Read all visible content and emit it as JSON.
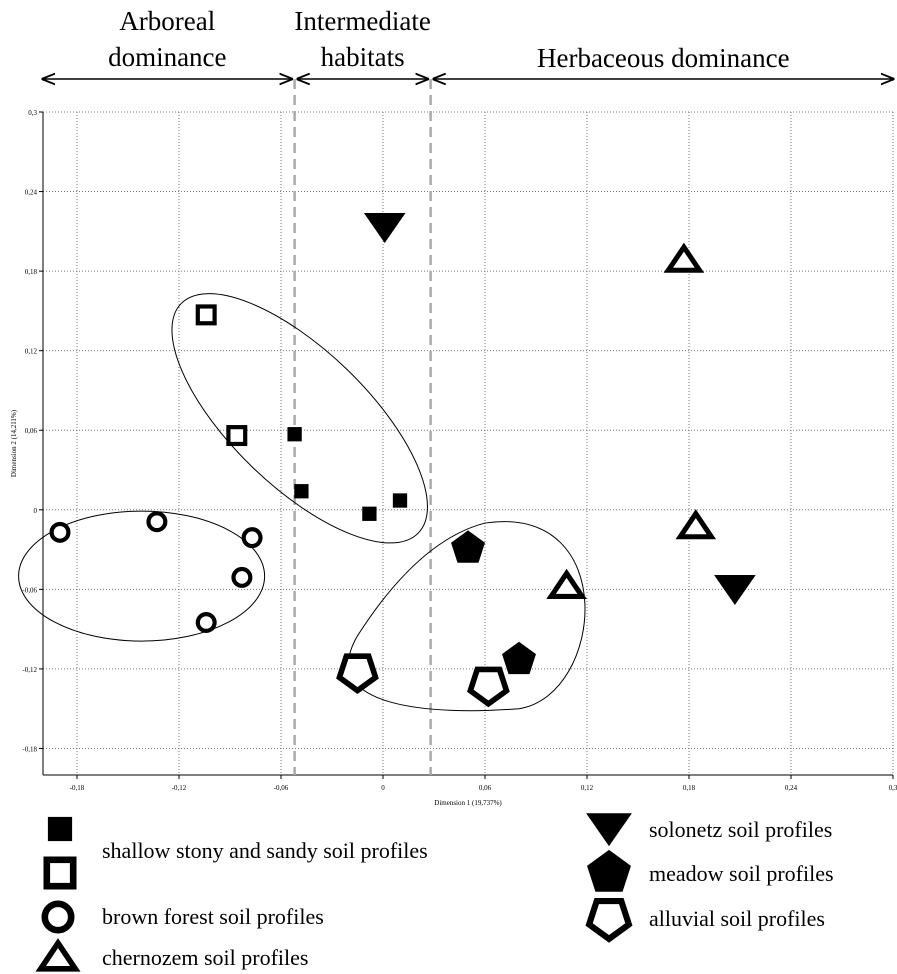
{
  "chart_data": {
    "type": "scatter",
    "xlabel": "Dimension 1 (19,737%)",
    "ylabel": "Dimension 2 (14,211%)",
    "xlim": [
      -0.2,
      0.3
    ],
    "ylim": [
      -0.2,
      0.3
    ],
    "x_ticks": [
      "-0,18",
      "-0,12",
      "-0,06",
      "0",
      "0,06",
      "0,12",
      "0,18",
      "0,24",
      "0,3"
    ],
    "y_ticks": [
      "-0,18",
      "-0,12",
      "-0,06",
      "0",
      "0,06",
      "0,12",
      "0,18",
      "0,24",
      "0,3"
    ],
    "x_tick_values": [
      -0.18,
      -0.12,
      -0.06,
      0,
      0.06,
      0.12,
      0.18,
      0.24,
      0.3
    ],
    "y_tick_values": [
      -0.18,
      -0.12,
      -0.06,
      0,
      0.06,
      0.12,
      0.18,
      0.24,
      0.3
    ],
    "grid": "dotted",
    "regions": [
      {
        "label_lines": [
          "Arboreal",
          "dominance"
        ],
        "x_from": -0.2,
        "x_to": -0.052
      },
      {
        "label_lines": [
          "Intermediate",
          "habitats"
        ],
        "x_from": -0.052,
        "x_to": 0.028
      },
      {
        "label_lines": [
          "Herbaceous dominance"
        ],
        "x_from": 0.028,
        "x_to": 0.3
      }
    ],
    "region_boundaries": [
      -0.052,
      0.028
    ],
    "series": [
      {
        "name": "shallow stony and sandy soil profiles",
        "marker": "square-filled",
        "points": [
          [
            -0.052,
            0.057
          ],
          [
            -0.048,
            0.014
          ],
          [
            -0.008,
            -0.003
          ],
          [
            0.01,
            0.007
          ]
        ]
      },
      {
        "name": "shallow stony and sandy soil profiles",
        "marker": "square-open",
        "points": [
          [
            -0.104,
            0.147
          ],
          [
            -0.086,
            0.056
          ]
        ]
      },
      {
        "name": "brown forest soil profiles",
        "marker": "circle-open",
        "points": [
          [
            -0.19,
            -0.017
          ],
          [
            -0.133,
            -0.009
          ],
          [
            -0.077,
            -0.021
          ],
          [
            -0.083,
            -0.051
          ],
          [
            -0.104,
            -0.085
          ]
        ]
      },
      {
        "name": "chernozem soil profiles",
        "marker": "triangle-open",
        "points": [
          [
            0.177,
            0.188
          ],
          [
            0.184,
            -0.013
          ],
          [
            0.108,
            -0.058
          ]
        ]
      },
      {
        "name": "solonetz soil profiles",
        "marker": "triangle-down-filled",
        "points": [
          [
            0.001,
            0.213
          ],
          [
            0.207,
            -0.06
          ]
        ]
      },
      {
        "name": "meadow soil profiles",
        "marker": "pentagon-filled",
        "points": [
          [
            0.05,
            -0.029
          ],
          [
            0.08,
            -0.113
          ]
        ]
      },
      {
        "name": "alluvial soil  profiles",
        "marker": "pentagon-open",
        "points": [
          [
            -0.015,
            -0.122
          ],
          [
            0.062,
            -0.132
          ]
        ]
      }
    ],
    "legend": {
      "left": [
        {
          "marker": "square-filled"
        },
        {
          "marker": "square-open",
          "label": "shallow stony and sandy soil profiles"
        },
        {
          "marker": "circle-open",
          "label": "brown forest soil profiles"
        },
        {
          "marker": "triangle-open",
          "label": "chernozem soil profiles"
        }
      ],
      "right": [
        {
          "marker": "triangle-down-filled",
          "label": "solonetz soil profiles"
        },
        {
          "marker": "pentagon-filled",
          "label": "meadow soil profiles"
        },
        {
          "marker": "pentagon-open",
          "label": "alluvial soil  profiles"
        }
      ],
      "placement": "bottom"
    },
    "enclosures": [
      "shallow stony and sandy soil profiles",
      "brown forest soil profiles",
      "meadow and alluvial soil profiles"
    ]
  }
}
